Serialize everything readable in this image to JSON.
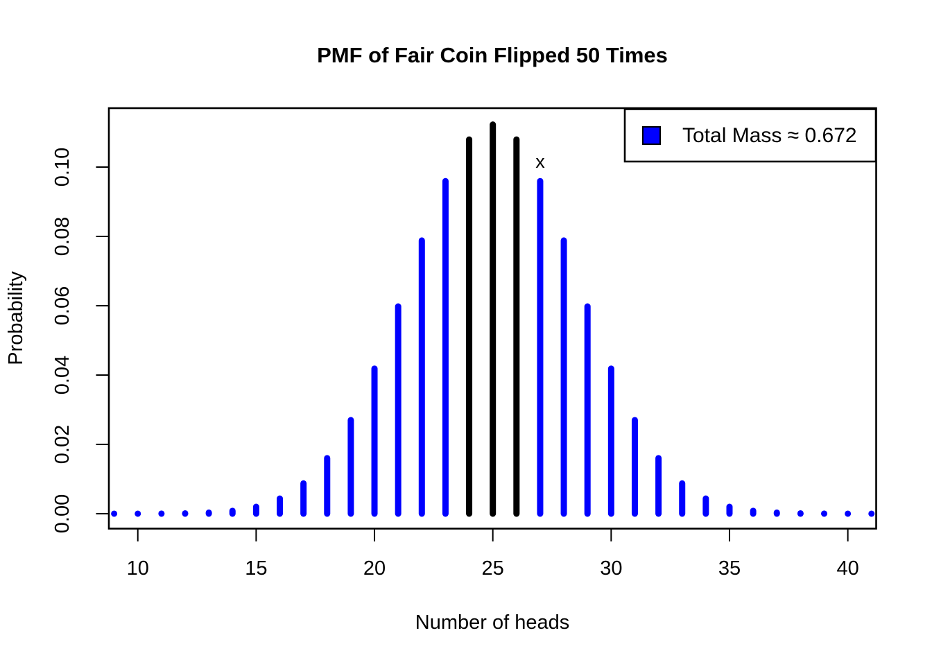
{
  "chart_data": {
    "type": "bar",
    "subtype": "lollipop-pmf",
    "title": "PMF of Fair Coin Flipped 50 Times",
    "xlabel": "Number of heads",
    "ylabel": "Probability",
    "x": [
      9,
      10,
      11,
      12,
      13,
      14,
      15,
      16,
      17,
      18,
      19,
      20,
      21,
      22,
      23,
      24,
      25,
      26,
      27,
      28,
      29,
      30,
      31,
      32,
      33,
      34,
      35,
      36,
      37,
      38,
      39,
      40,
      41
    ],
    "values": [
      2.2e-06,
      9.1e-06,
      3.32e-05,
      0.0001078,
      0.000315,
      0.000833,
      0.001999,
      0.004373,
      0.008746,
      0.016035,
      0.027006,
      0.041859,
      0.059799,
      0.078826,
      0.095962,
      0.107957,
      0.112275,
      0.107957,
      0.095962,
      0.078826,
      0.059799,
      0.041859,
      0.027006,
      0.016035,
      0.008746,
      0.004373,
      0.001999,
      0.000833,
      0.000315,
      0.0001078,
      3.32e-05,
      9.1e-06,
      2.2e-06
    ],
    "highlighted_x": [
      24,
      25,
      26
    ],
    "colors": {
      "default": "#0000FF",
      "highlighted": "#000000",
      "axis": "#000000",
      "background": "#FFFFFF"
    },
    "x_ticks": [
      10,
      15,
      20,
      25,
      30,
      35,
      40
    ],
    "y_ticks": [
      "0.00",
      "0.02",
      "0.04",
      "0.06",
      "0.08",
      "0.10"
    ],
    "xlim": [
      8.78,
      41.22
    ],
    "ylim": [
      -0.0045,
      0.1168
    ],
    "grid": false,
    "annotation": {
      "x": 27,
      "label": "x"
    },
    "legend": {
      "position": "top-right",
      "label": "Total Mass ≈ 0.672",
      "swatch_color": "#0000FF"
    }
  }
}
